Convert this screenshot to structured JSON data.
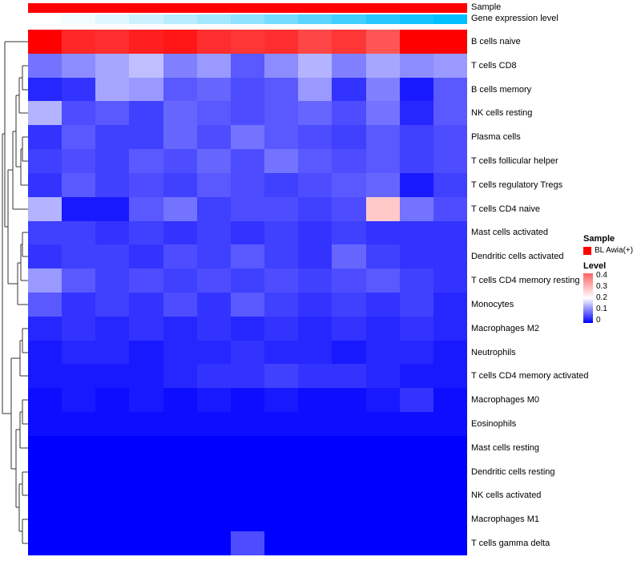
{
  "annotations": {
    "sample_label": "Sample",
    "gene_expression_label": "Gene expression level",
    "sample_color": "#FF0000",
    "gene_expression_low_color": "#FFFFFF",
    "gene_expression_high_color": "#00BFFF"
  },
  "legend": {
    "sample_title": "Sample",
    "sample_items": [
      {
        "label": "BL Awia(+)",
        "color": "#FF0000"
      }
    ],
    "level_title": "Level",
    "level_ticks": [
      "0.4",
      "0.3",
      "0.2",
      "0.1",
      "0"
    ]
  },
  "chart_data": {
    "type": "heatmap",
    "title": "",
    "n_cols": 13,
    "rows": [
      "B cells naive",
      "T cells CD8",
      "B cells memory",
      "NK cells resting",
      "Plasma cells",
      "T cells follicular helper",
      "T cells regulatory  Tregs",
      "T cells CD4 naive",
      "Mast cells activated",
      "Dendritic cells activated",
      "T cells CD4 memory resting",
      "Monocytes",
      "Macrophages M2",
      "Neutrophils",
      "T cells CD4 memory activated",
      "Macrophages M0",
      "Eosinophils",
      "Mast cells resting",
      "Dendritic cells resting",
      "NK cells activated",
      "Macrophages M1",
      "T cells gamma delta"
    ],
    "values": [
      [
        0.56,
        0.48,
        0.47,
        0.49,
        0.5,
        0.47,
        0.46,
        0.47,
        0.44,
        0.46,
        0.42,
        0.53,
        0.56
      ],
      [
        0.09,
        0.11,
        0.13,
        0.15,
        0.1,
        0.12,
        0.07,
        0.11,
        0.14,
        0.1,
        0.13,
        0.11,
        0.12
      ],
      [
        0.03,
        0.04,
        0.13,
        0.12,
        0.07,
        0.08,
        0.06,
        0.07,
        0.12,
        0.04,
        0.1,
        0.02,
        0.07
      ],
      [
        0.14,
        0.06,
        0.07,
        0.05,
        0.08,
        0.07,
        0.06,
        0.07,
        0.08,
        0.06,
        0.09,
        0.03,
        0.07
      ],
      [
        0.04,
        0.07,
        0.05,
        0.05,
        0.08,
        0.06,
        0.09,
        0.07,
        0.06,
        0.05,
        0.07,
        0.05,
        0.06
      ],
      [
        0.05,
        0.06,
        0.05,
        0.07,
        0.06,
        0.08,
        0.06,
        0.09,
        0.07,
        0.06,
        0.07,
        0.05,
        0.06
      ],
      [
        0.04,
        0.07,
        0.05,
        0.06,
        0.05,
        0.07,
        0.06,
        0.05,
        0.06,
        0.07,
        0.08,
        0.02,
        0.05
      ],
      [
        0.14,
        0.02,
        0.02,
        0.07,
        0.09,
        0.05,
        0.06,
        0.06,
        0.05,
        0.06,
        0.27,
        0.09,
        0.06
      ],
      [
        0.05,
        0.05,
        0.04,
        0.05,
        0.04,
        0.05,
        0.04,
        0.05,
        0.04,
        0.05,
        0.04,
        0.04,
        0.04
      ],
      [
        0.04,
        0.05,
        0.05,
        0.04,
        0.06,
        0.05,
        0.07,
        0.05,
        0.04,
        0.08,
        0.05,
        0.04,
        0.04
      ],
      [
        0.12,
        0.07,
        0.05,
        0.06,
        0.05,
        0.06,
        0.05,
        0.06,
        0.05,
        0.06,
        0.07,
        0.05,
        0.04
      ],
      [
        0.07,
        0.04,
        0.05,
        0.04,
        0.06,
        0.04,
        0.07,
        0.05,
        0.04,
        0.05,
        0.04,
        0.05,
        0.03
      ],
      [
        0.03,
        0.04,
        0.03,
        0.04,
        0.03,
        0.04,
        0.03,
        0.04,
        0.03,
        0.04,
        0.03,
        0.04,
        0.03
      ],
      [
        0.02,
        0.03,
        0.03,
        0.02,
        0.03,
        0.03,
        0.04,
        0.03,
        0.03,
        0.02,
        0.03,
        0.03,
        0.02
      ],
      [
        0.02,
        0.02,
        0.02,
        0.02,
        0.03,
        0.04,
        0.04,
        0.05,
        0.04,
        0.04,
        0.03,
        0.02,
        0.02
      ],
      [
        0.01,
        0.02,
        0.01,
        0.02,
        0.01,
        0.02,
        0.01,
        0.02,
        0.01,
        0.01,
        0.02,
        0.04,
        0.01
      ],
      [
        0.01,
        0.01,
        0.01,
        0.01,
        0.01,
        0.01,
        0.01,
        0.01,
        0.01,
        0.01,
        0.01,
        0.01,
        0.01
      ],
      [
        0.0,
        0.0,
        0.0,
        0.0,
        0.0,
        0.0,
        0.0,
        0.0,
        0.0,
        0.0,
        0.0,
        0.0,
        0.0
      ],
      [
        0.0,
        0.0,
        0.0,
        0.0,
        0.0,
        0.0,
        0.0,
        0.0,
        0.0,
        0.0,
        0.0,
        0.0,
        0.0
      ],
      [
        0.0,
        0.0,
        0.0,
        0.0,
        0.0,
        0.0,
        0.0,
        0.0,
        0.0,
        0.0,
        0.0,
        0.0,
        0.0
      ],
      [
        0.0,
        0.0,
        0.0,
        0.0,
        0.0,
        0.0,
        0.0,
        0.0,
        0.0,
        0.0,
        0.0,
        0.0,
        0.0
      ],
      [
        0.0,
        0.0,
        0.0,
        0.0,
        0.0,
        0.0,
        0.06,
        0.0,
        0.0,
        0.0,
        0.0,
        0.0,
        0.0
      ]
    ],
    "gene_expression": [
      0.0,
      0.05,
      0.12,
      0.2,
      0.28,
      0.36,
      0.45,
      0.55,
      0.65,
      0.75,
      0.85,
      0.93,
      1.0
    ],
    "color_scale": {
      "low": "#0000FF",
      "mid": "#FFFFFF",
      "high": "#FF0000",
      "mid_at": 0.2,
      "high_at": 0.53
    },
    "legend_range": [
      0,
      0.4
    ],
    "legend_position": "right",
    "grid": false
  }
}
